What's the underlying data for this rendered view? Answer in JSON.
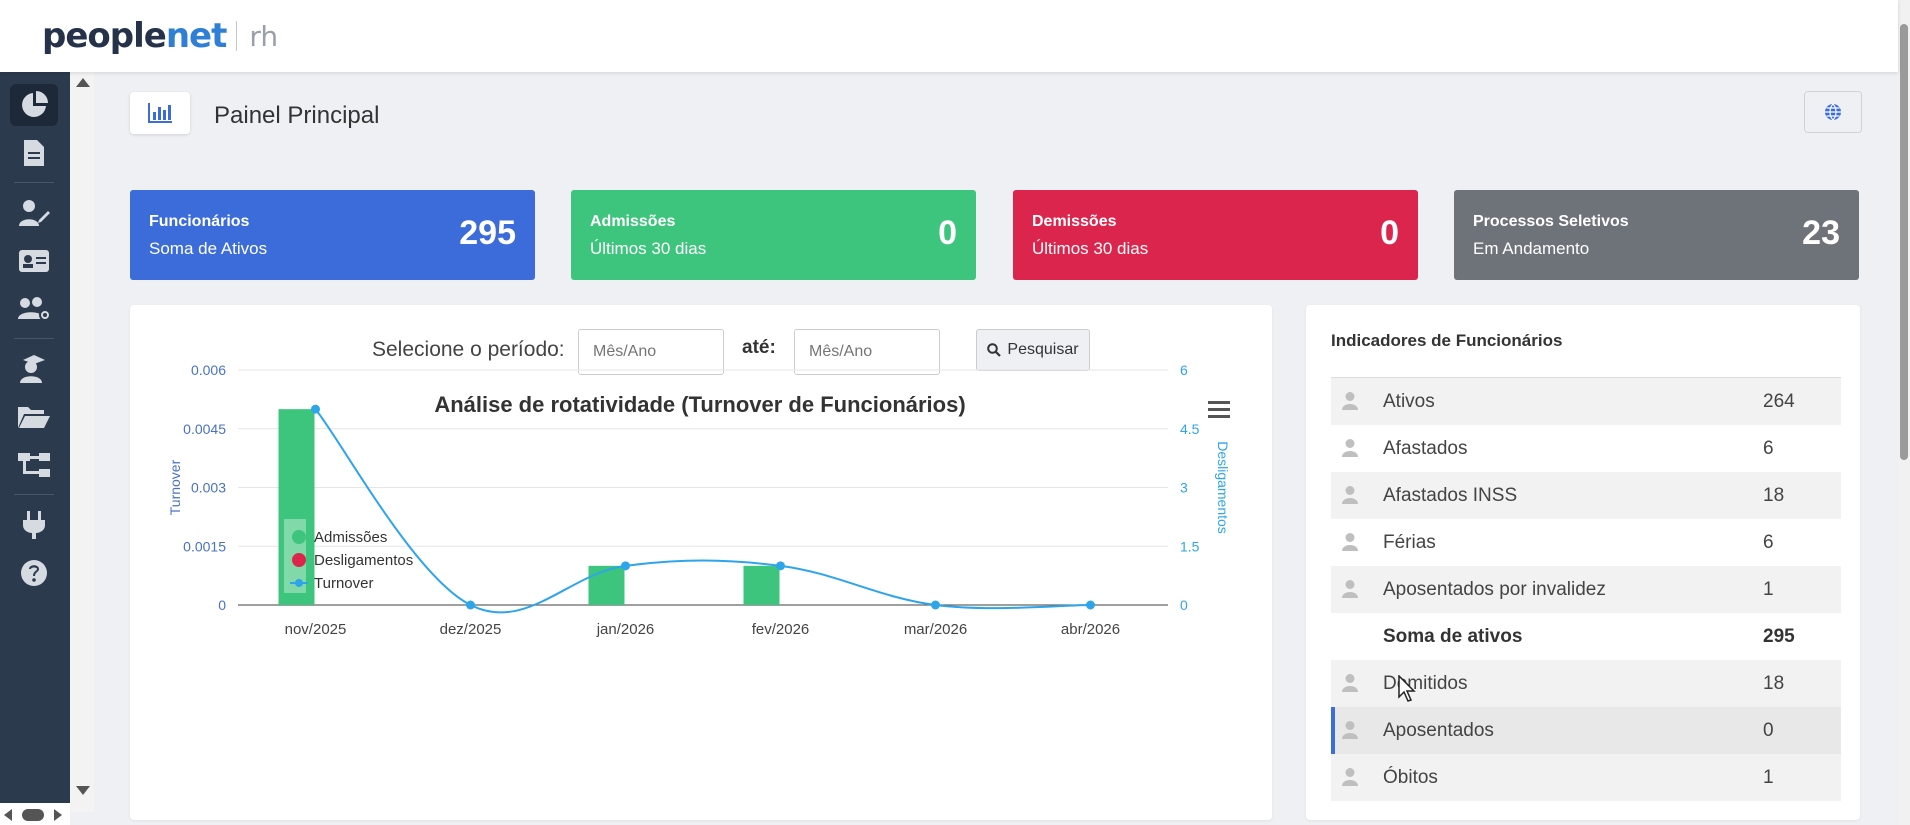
{
  "app": {
    "logo_primary": "people",
    "logo_accent": "net",
    "logo_suffix": "rh"
  },
  "sidebar": {
    "items": [
      {
        "icon": "pie-chart-icon",
        "active": true
      },
      {
        "icon": "document-icon"
      },
      {
        "icon": "user-edit-icon"
      },
      {
        "icon": "id-card-icon"
      },
      {
        "icon": "users-cog-icon"
      },
      {
        "icon": "graduation-cap-icon"
      },
      {
        "icon": "folder-open-icon"
      },
      {
        "icon": "sitemap-icon"
      },
      {
        "icon": "plug-icon"
      },
      {
        "icon": "help-icon"
      }
    ]
  },
  "header": {
    "title": "Painel Principal",
    "icon": "bar-chart-icon",
    "globe_icon": "globe-icon"
  },
  "kpis": [
    {
      "title": "Funcionários",
      "subtitle": "Soma de Ativos",
      "value": "295",
      "color": "#3c6cd9"
    },
    {
      "title": "Admissões",
      "subtitle": "Últimos 30 dias",
      "value": "0",
      "color": "#3ec57d"
    },
    {
      "title": "Demissões",
      "subtitle": "Últimos 30 dias",
      "value": "0",
      "color": "#dc254c"
    },
    {
      "title": "Processos Seletivos",
      "subtitle": "Em Andamento",
      "value": "23",
      "color": "#6d7378"
    }
  ],
  "filter": {
    "label": "Selecione o período:",
    "from_placeholder": "Mês/Ano",
    "to_label": "até:",
    "to_placeholder": "Mês/Ano",
    "search_label": "Pesquisar"
  },
  "chart_data": {
    "type": "bar",
    "title": "Análise de rotatividade (Turnover de Funcionários)",
    "categories": [
      "nov/2025",
      "dez/2025",
      "jan/2026",
      "fev/2026",
      "mar/2026",
      "abr/2026"
    ],
    "series": [
      {
        "name": "Admissões",
        "type": "bar",
        "axis": "left",
        "values": [
          0.005,
          0,
          0.001,
          0.001,
          0,
          0
        ],
        "color": "#3ec57d"
      },
      {
        "name": "Desligamentos",
        "type": "bar",
        "axis": "right",
        "values": [
          0,
          0,
          0,
          0,
          0,
          0
        ],
        "color": "#dc254c"
      },
      {
        "name": "Turnover",
        "type": "spline",
        "axis": "right",
        "values": [
          5,
          0,
          1,
          1,
          0,
          0
        ],
        "color": "#2ea5ea"
      }
    ],
    "y_left": {
      "label": "Turnover",
      "ticks": [
        "0",
        "0.0015",
        "0.003",
        "0.0045",
        "0.006"
      ],
      "min": 0,
      "max": 0.006
    },
    "y_right": {
      "label": "Desligamentos",
      "ticks": [
        "0",
        "1.5",
        "3",
        "4.5",
        "6"
      ],
      "min": 0,
      "max": 6
    },
    "grid": true,
    "legend_position": "top-left-inside"
  },
  "indicators": {
    "title": "Indicadores de Funcionários",
    "rows": [
      {
        "label": "Ativos",
        "value": "264",
        "icon": true
      },
      {
        "label": "Afastados",
        "value": "6",
        "icon": true
      },
      {
        "label": "Afastados INSS",
        "value": "18",
        "icon": true
      },
      {
        "label": "Férias",
        "value": "6",
        "icon": true
      },
      {
        "label": "Aposentados por invalidez",
        "value": "1",
        "icon": true
      },
      {
        "label": "Soma de ativos",
        "value": "295",
        "icon": false,
        "total": true
      },
      {
        "label": "Demitidos",
        "value": "18",
        "icon": true
      },
      {
        "label": "Aposentados",
        "value": "0",
        "icon": true,
        "highlight": true
      },
      {
        "label": "Óbitos",
        "value": "1",
        "icon": true
      }
    ]
  }
}
